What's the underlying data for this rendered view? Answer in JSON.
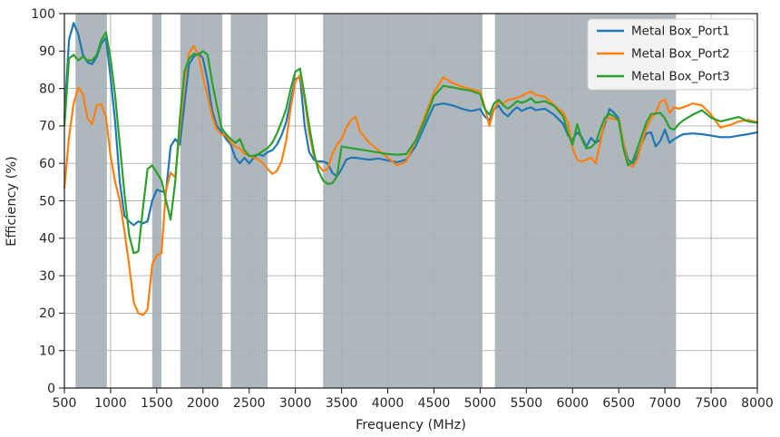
{
  "chart_data": {
    "type": "line",
    "title": "",
    "xlabel": "Frequency (MHz)",
    "ylabel": "Efficiency (%)",
    "xlim": [
      500,
      8000
    ],
    "ylim": [
      0,
      100
    ],
    "x_ticks": [
      500,
      1000,
      1500,
      2000,
      2500,
      3000,
      3500,
      4000,
      4500,
      5000,
      5500,
      6000,
      6500,
      7000,
      7500,
      8000
    ],
    "y_ticks": [
      0,
      10,
      20,
      30,
      40,
      50,
      60,
      70,
      80,
      90,
      100
    ],
    "grid": true,
    "legend_position": "upper right",
    "shaded_bands_mhz": [
      [
        620,
        960
      ],
      [
        1450,
        1550
      ],
      [
        1755,
        2210
      ],
      [
        2300,
        2700
      ],
      [
        3300,
        5025
      ],
      [
        5160,
        7120
      ]
    ],
    "x_mhz": [
      500,
      550,
      600,
      650,
      700,
      750,
      800,
      850,
      900,
      950,
      1000,
      1050,
      1100,
      1150,
      1200,
      1250,
      1300,
      1350,
      1400,
      1450,
      1500,
      1550,
      1600,
      1650,
      1700,
      1750,
      1800,
      1850,
      1900,
      1950,
      2000,
      2050,
      2100,
      2150,
      2200,
      2250,
      2300,
      2350,
      2400,
      2450,
      2500,
      2550,
      2600,
      2650,
      2700,
      2750,
      2800,
      2850,
      2900,
      2950,
      3000,
      3050,
      3100,
      3150,
      3200,
      3250,
      3300,
      3350,
      3400,
      3450,
      3500,
      3550,
      3600,
      3650,
      3700,
      3800,
      3900,
      4000,
      4100,
      4200,
      4300,
      4400,
      4500,
      4600,
      4700,
      4800,
      4900,
      5000,
      5050,
      5100,
      5150,
      5200,
      5250,
      5300,
      5350,
      5400,
      5450,
      5500,
      5550,
      5600,
      5700,
      5800,
      5900,
      5950,
      6000,
      6050,
      6100,
      6150,
      6200,
      6250,
      6300,
      6350,
      6400,
      6450,
      6500,
      6550,
      6600,
      6650,
      6700,
      6750,
      6800,
      6850,
      6900,
      6950,
      7000,
      7050,
      7100,
      7150,
      7200,
      7300,
      7400,
      7500,
      7600,
      7700,
      7800,
      7900,
      8000
    ],
    "series": [
      {
        "name": "Metal Box_Port1",
        "color": "#1f77b4",
        "values": [
          72,
          93,
          97.5,
          94.5,
          89,
          87,
          86.5,
          88.5,
          92,
          93.5,
          83,
          71,
          55,
          46,
          44.5,
          43.5,
          44.5,
          44,
          44.5,
          50,
          53,
          52.5,
          52.5,
          64.5,
          66.5,
          65,
          76,
          86.5,
          88.5,
          89.5,
          88,
          82,
          74,
          70,
          68.5,
          66.5,
          65,
          61.5,
          60,
          61.5,
          60,
          61.5,
          62.5,
          62,
          63,
          63.5,
          65,
          67.5,
          71,
          77,
          82.5,
          83,
          70,
          63,
          61,
          60.5,
          60.5,
          60,
          57.5,
          56.5,
          58.5,
          61,
          61.5,
          61.5,
          61.3,
          61,
          61.3,
          60.8,
          60.3,
          61,
          64.5,
          70,
          75.5,
          76,
          75.5,
          74.6,
          74,
          74.5,
          72.5,
          71.5,
          74.5,
          75.4,
          73.5,
          72.6,
          74,
          75,
          74,
          74.6,
          75,
          74.2,
          74.6,
          73,
          70.5,
          67.5,
          66.3,
          68.3,
          67,
          64.5,
          66.8,
          65.5,
          66.3,
          70.5,
          74.5,
          73.5,
          72,
          65.5,
          61,
          60,
          62,
          65.5,
          68,
          68.3,
          64.5,
          66,
          69,
          65.5,
          66.5,
          67.2,
          67.8,
          68,
          67.8,
          67.4,
          67,
          67,
          67.4,
          67.8,
          68.3
        ]
      },
      {
        "name": "Metal Box_Port2",
        "color": "#ff7f0e",
        "values": [
          53.5,
          67,
          76,
          80.3,
          78.5,
          72,
          70.5,
          75.5,
          75.8,
          72.5,
          62,
          55,
          50,
          42,
          33,
          23,
          20,
          19.5,
          21,
          33,
          35.5,
          36,
          53,
          57.5,
          56.3,
          69,
          82,
          89.5,
          91.3,
          89,
          83,
          78,
          72.5,
          69,
          67.8,
          67.4,
          65.5,
          64.5,
          64,
          62.5,
          62,
          61.5,
          61,
          60,
          58.5,
          57.2,
          58,
          60.5,
          66,
          75,
          82,
          83.5,
          77,
          68,
          62,
          59.5,
          58,
          58.5,
          62.5,
          65,
          66.5,
          69.5,
          71.5,
          72.5,
          68.5,
          65.5,
          63.5,
          61.5,
          59.5,
          60.5,
          66,
          72.5,
          79,
          83,
          81.5,
          80.5,
          79.8,
          79.2,
          75,
          70,
          74.5,
          76.5,
          76,
          77,
          77.2,
          77.5,
          78,
          78.7,
          79.2,
          78.3,
          77.8,
          75.6,
          73.5,
          71,
          64,
          61,
          60.5,
          61,
          61.5,
          60,
          65.5,
          71.5,
          72.2,
          71.8,
          71.8,
          65.5,
          60,
          59,
          61,
          65.5,
          69.5,
          72,
          73.5,
          76.5,
          77,
          73.5,
          75,
          74.6,
          75,
          76,
          75.5,
          73,
          69.6,
          70.2,
          71.2,
          71.6,
          71
        ]
      },
      {
        "name": "Metal Box_Port3",
        "color": "#2ca02c",
        "values": [
          70,
          88,
          89,
          87.5,
          88.5,
          87.5,
          87.5,
          89,
          93,
          95,
          88,
          78,
          65,
          52,
          41,
          36,
          36.5,
          48,
          58.5,
          59.5,
          57.5,
          55.5,
          50,
          45,
          55,
          72,
          84.5,
          88,
          89.3,
          89,
          90,
          89,
          81.5,
          75.5,
          69.5,
          67.8,
          66.5,
          65.5,
          66.5,
          63.5,
          62,
          62,
          62.5,
          63.3,
          64.1,
          65.5,
          68,
          71,
          74.5,
          80,
          84.5,
          85.3,
          78,
          70,
          63,
          58,
          55.5,
          54.5,
          54.7,
          56.5,
          64.5,
          64.3,
          64.1,
          63.9,
          63.7,
          63.3,
          62.9,
          62.5,
          62.3,
          62.5,
          66,
          71.5,
          78,
          80.7,
          80.3,
          79.8,
          79.4,
          78.5,
          74.5,
          73,
          76,
          77,
          75.5,
          74.6,
          75.5,
          76.6,
          76.2,
          76.6,
          77.4,
          76.2,
          76.6,
          75.4,
          72.5,
          68,
          65,
          70.5,
          66.5,
          64,
          64.3,
          65.5,
          69,
          72.2,
          73.2,
          72.6,
          71.4,
          64,
          59.5,
          60.5,
          64,
          67.5,
          71,
          73.2,
          73.3,
          73.5,
          72,
          69.5,
          69,
          70.5,
          71.5,
          73,
          74.2,
          72.2,
          71.2,
          71.8,
          72.4,
          71.2,
          70.8
        ]
      }
    ]
  },
  "style": {
    "background": "#ffffff",
    "band_color": "#aeb8bc",
    "grid_color": "#a9b0b3",
    "spine_color": "#2b2b2b",
    "tick_color": "#262626",
    "text_color": "#262626",
    "legend_bg": "#ffffff",
    "legend_border": "#cccccc",
    "line_width": 2.2
  }
}
